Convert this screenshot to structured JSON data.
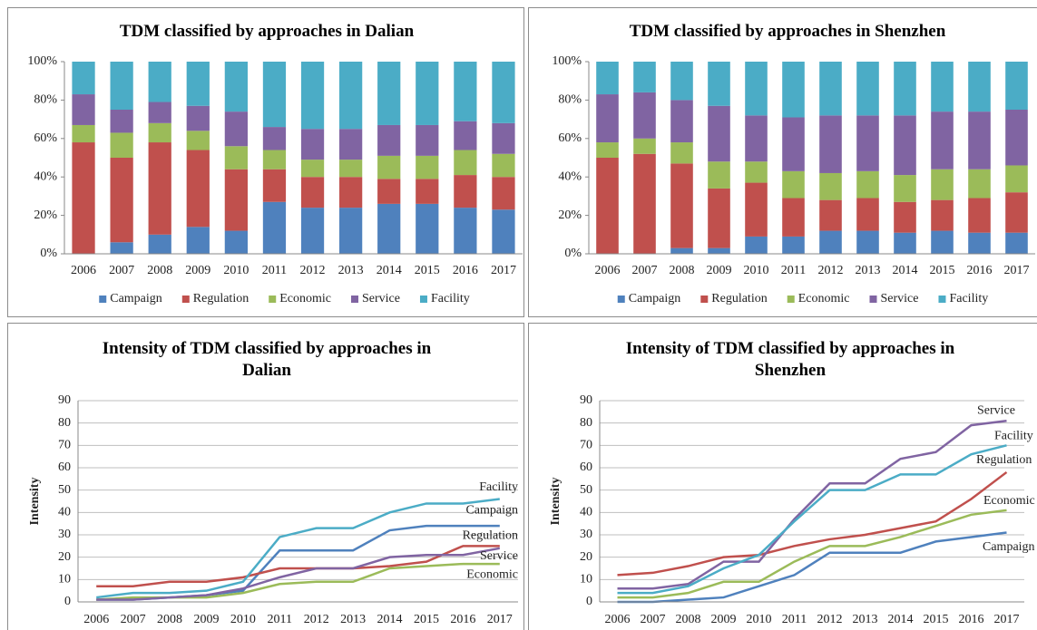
{
  "chart_data": [
    {
      "type": "bar",
      "stacked": true,
      "title": "TDM classified by approaches   in Dalian",
      "categories": [
        "2006",
        "2007",
        "2008",
        "2009",
        "2010",
        "2011",
        "2012",
        "2013",
        "2014",
        "2015",
        "2016",
        "2017"
      ],
      "series": [
        {
          "name": "Campaign",
          "color": "#4f81bd",
          "values": [
            0,
            6,
            10,
            14,
            12,
            27,
            24,
            24,
            26,
            26,
            24,
            23
          ]
        },
        {
          "name": "Regulation",
          "color": "#c0504d",
          "values": [
            58,
            44,
            48,
            40,
            32,
            17,
            16,
            16,
            13,
            13,
            17,
            17
          ]
        },
        {
          "name": "Economic",
          "color": "#9bbb59",
          "values": [
            9,
            13,
            10,
            10,
            12,
            10,
            9,
            9,
            12,
            12,
            13,
            12
          ]
        },
        {
          "name": "Service",
          "color": "#8064a2",
          "values": [
            16,
            12,
            11,
            13,
            18,
            12,
            16,
            16,
            16,
            16,
            15,
            16
          ]
        },
        {
          "name": "Facility",
          "color": "#4bacc6",
          "values": [
            17,
            25,
            21,
            23,
            26,
            34,
            35,
            35,
            33,
            33,
            31,
            32
          ]
        }
      ],
      "ylim": [
        0,
        100
      ],
      "yticks": [
        {
          "value": 0,
          "label": "0%"
        },
        {
          "value": 20,
          "label": "20%"
        },
        {
          "value": 40,
          "label": "40%"
        },
        {
          "value": 60,
          "label": "60%"
        },
        {
          "value": 80,
          "label": "80%"
        },
        {
          "value": 100,
          "label": "100%"
        }
      ],
      "legend": "bottom"
    },
    {
      "type": "bar",
      "stacked": true,
      "title": "TDM classified by approaches   in Shenzhen",
      "categories": [
        "2006",
        "2007",
        "2008",
        "2009",
        "2010",
        "2011",
        "2012",
        "2013",
        "2014",
        "2015",
        "2016",
        "2017"
      ],
      "series": [
        {
          "name": "Campaign",
          "color": "#4f81bd",
          "values": [
            0,
            0,
            3,
            3,
            9,
            9,
            12,
            12,
            11,
            12,
            11,
            11
          ]
        },
        {
          "name": "Regulation",
          "color": "#c0504d",
          "values": [
            50,
            52,
            44,
            31,
            28,
            20,
            16,
            17,
            16,
            16,
            18,
            21
          ]
        },
        {
          "name": "Economic",
          "color": "#9bbb59",
          "values": [
            8,
            8,
            11,
            14,
            11,
            14,
            14,
            14,
            14,
            16,
            15,
            14
          ]
        },
        {
          "name": "Service",
          "color": "#8064a2",
          "values": [
            25,
            24,
            22,
            29,
            24,
            28,
            30,
            29,
            31,
            30,
            30,
            29
          ]
        },
        {
          "name": "Facility",
          "color": "#4bacc6",
          "values": [
            17,
            16,
            20,
            23,
            28,
            29,
            28,
            28,
            28,
            26,
            26,
            25
          ]
        }
      ],
      "ylim": [
        0,
        100
      ],
      "yticks": [
        {
          "value": 0,
          "label": "0%"
        },
        {
          "value": 20,
          "label": "20%"
        },
        {
          "value": 40,
          "label": "40%"
        },
        {
          "value": 60,
          "label": "60%"
        },
        {
          "value": 80,
          "label": "80%"
        },
        {
          "value": 100,
          "label": "100%"
        }
      ],
      "legend": "bottom"
    },
    {
      "type": "line",
      "title": "Intensity of TDM classified by approaches in Dalian",
      "y_label": "Intensity",
      "categories": [
        "2006",
        "2007",
        "2008",
        "2009",
        "2010",
        "2011",
        "2012",
        "2013",
        "2014",
        "2015",
        "2016",
        "2017"
      ],
      "series": [
        {
          "name": "Campaign",
          "color": "#4f81bd",
          "values": [
            1,
            1,
            2,
            3,
            5,
            23,
            23,
            23,
            32,
            34,
            34,
            34
          ]
        },
        {
          "name": "Regulation",
          "color": "#c0504d",
          "values": [
            7,
            7,
            9,
            9,
            11,
            15,
            15,
            15,
            16,
            18,
            25,
            25
          ]
        },
        {
          "name": "Economic",
          "color": "#9bbb59",
          "values": [
            1,
            2,
            2,
            2,
            4,
            8,
            9,
            9,
            15,
            16,
            17,
            17
          ]
        },
        {
          "name": "Service",
          "color": "#8064a2",
          "values": [
            1,
            1,
            2,
            3,
            6,
            11,
            15,
            15,
            20,
            21,
            21,
            24
          ]
        },
        {
          "name": "Facility",
          "color": "#4bacc6",
          "values": [
            2,
            4,
            4,
            5,
            9,
            29,
            33,
            33,
            40,
            44,
            44,
            46
          ]
        }
      ],
      "ylim": [
        0,
        90
      ],
      "yticks": [
        0,
        10,
        20,
        30,
        40,
        50,
        60,
        70,
        80,
        90
      ],
      "grid": true
    },
    {
      "type": "line",
      "title": "Intensity of TDM classified by approaches in Shenzhen",
      "y_label": "Intensity",
      "categories": [
        "2006",
        "2007",
        "2008",
        "2009",
        "2010",
        "2011",
        "2012",
        "2013",
        "2014",
        "2015",
        "2016",
        "2017"
      ],
      "series": [
        {
          "name": "Campaign",
          "color": "#4f81bd",
          "values": [
            0,
            0,
            1,
            2,
            7,
            12,
            22,
            22,
            22,
            27,
            29,
            31
          ]
        },
        {
          "name": "Regulation",
          "color": "#c0504d",
          "values": [
            12,
            13,
            16,
            20,
            21,
            25,
            28,
            30,
            33,
            36,
            46,
            58
          ]
        },
        {
          "name": "Economic",
          "color": "#9bbb59",
          "values": [
            2,
            2,
            4,
            9,
            9,
            18,
            25,
            25,
            29,
            34,
            39,
            41
          ]
        },
        {
          "name": "Service",
          "color": "#8064a2",
          "values": [
            6,
            6,
            8,
            18,
            18,
            37,
            53,
            53,
            64,
            67,
            79,
            81
          ]
        },
        {
          "name": "Facility",
          "color": "#4bacc6",
          "values": [
            4,
            4,
            7,
            15,
            21,
            36,
            50,
            50,
            57,
            57,
            66,
            70
          ]
        }
      ],
      "ylim": [
        0,
        90
      ],
      "yticks": [
        0,
        10,
        20,
        30,
        40,
        50,
        60,
        70,
        80,
        90
      ],
      "grid": true
    }
  ]
}
